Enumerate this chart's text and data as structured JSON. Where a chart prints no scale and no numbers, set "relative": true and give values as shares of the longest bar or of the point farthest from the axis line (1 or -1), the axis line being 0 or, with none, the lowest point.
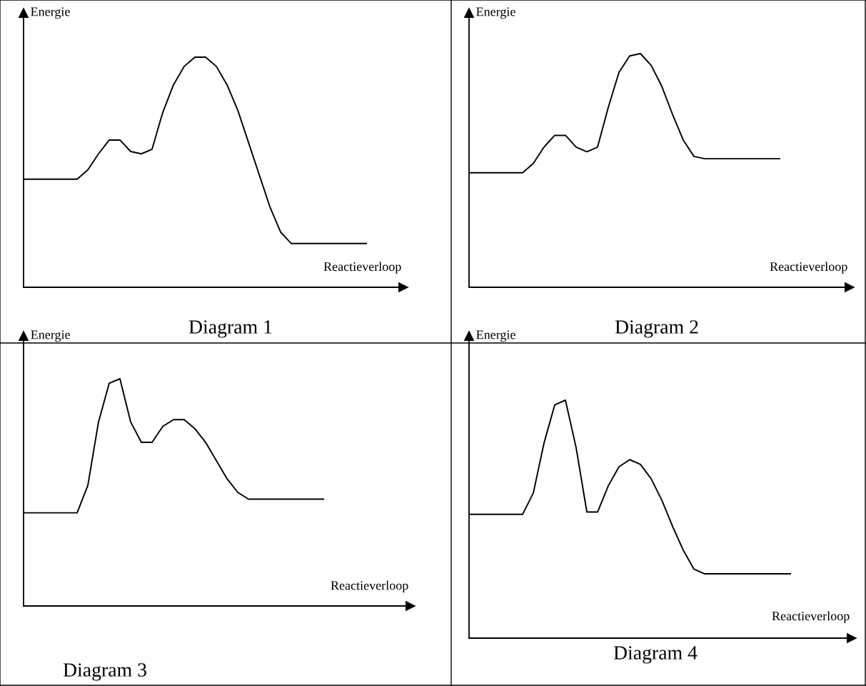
{
  "chart_data": [
    {
      "type": "line",
      "title": "Diagram 1",
      "xlabel": "Reactieverloop",
      "ylabel": "Energie",
      "relative": true,
      "categories": [
        null,
        null,
        null,
        null,
        null,
        null,
        null,
        null,
        null,
        null,
        null,
        null,
        null,
        null,
        null,
        null,
        null,
        null,
        null,
        null,
        null,
        null,
        null,
        null,
        null,
        null,
        null,
        null,
        null,
        null,
        null,
        null,
        null
      ],
      "series": [
        {
          "color": "#000000",
          "values": [
            0.47,
            0.47,
            0.47,
            0.47,
            0.47,
            0.47,
            0.51,
            0.58,
            0.64,
            0.64,
            0.59,
            0.58,
            0.6,
            0.76,
            0.88,
            0.96,
            1,
            1,
            0.96,
            0.88,
            0.77,
            0.63,
            0.49,
            0.35,
            0.24,
            0.19,
            0.19,
            0.19,
            0.19,
            0.19,
            0.19,
            0.19,
            0.19
          ]
        }
      ]
    },
    {
      "type": "line",
      "title": "Diagram 2",
      "xlabel": "Reactieverloop",
      "ylabel": "Energie",
      "relative": true,
      "categories": [
        null,
        null,
        null,
        null,
        null,
        null,
        null,
        null,
        null,
        null,
        null,
        null,
        null,
        null,
        null,
        null,
        null,
        null,
        null,
        null,
        null,
        null,
        null,
        null,
        null,
        null,
        null,
        null,
        null,
        null
      ],
      "series": [
        {
          "color": "#000000",
          "values": [
            0.49,
            0.49,
            0.49,
            0.49,
            0.49,
            0.49,
            0.53,
            0.6,
            0.65,
            0.65,
            0.6,
            0.58,
            0.6,
            0.77,
            0.92,
            0.99,
            1,
            0.95,
            0.86,
            0.74,
            0.63,
            0.56,
            0.55,
            0.55,
            0.55,
            0.55,
            0.55,
            0.55,
            0.55,
            0.55
          ]
        }
      ]
    },
    {
      "type": "line",
      "title": "Diagram 3",
      "xlabel": "Reactieverloop",
      "ylabel": "Energie",
      "relative": true,
      "categories": [
        null,
        null,
        null,
        null,
        null,
        null,
        null,
        null,
        null,
        null,
        null,
        null,
        null,
        null,
        null,
        null,
        null,
        null,
        null,
        null,
        null,
        null,
        null,
        null,
        null,
        null,
        null,
        null,
        null
      ],
      "series": [
        {
          "color": "#000000",
          "values": [
            0.41,
            0.41,
            0.41,
            0.41,
            0.41,
            0.41,
            0.53,
            0.81,
            0.98,
            1,
            0.81,
            0.72,
            0.72,
            0.79,
            0.82,
            0.82,
            0.78,
            0.72,
            0.64,
            0.56,
            0.5,
            0.47,
            0.47,
            0.47,
            0.47,
            0.47,
            0.47,
            0.47,
            0.47
          ]
        }
      ]
    },
    {
      "type": "line",
      "title": "Diagram 4",
      "xlabel": "Reactieverloop",
      "ylabel": "Energie",
      "relative": true,
      "categories": [
        null,
        null,
        null,
        null,
        null,
        null,
        null,
        null,
        null,
        null,
        null,
        null,
        null,
        null,
        null,
        null,
        null,
        null,
        null,
        null,
        null,
        null,
        null,
        null,
        null,
        null,
        null,
        null,
        null,
        null,
        null
      ],
      "series": [
        {
          "color": "#000000",
          "values": [
            0.52,
            0.52,
            0.52,
            0.52,
            0.52,
            0.52,
            0.61,
            0.82,
            0.98,
            1,
            0.8,
            0.53,
            0.53,
            0.64,
            0.72,
            0.75,
            0.73,
            0.67,
            0.58,
            0.47,
            0.37,
            0.29,
            0.27,
            0.27,
            0.27,
            0.27,
            0.27,
            0.27,
            0.27,
            0.27,
            0.27
          ]
        }
      ]
    }
  ]
}
